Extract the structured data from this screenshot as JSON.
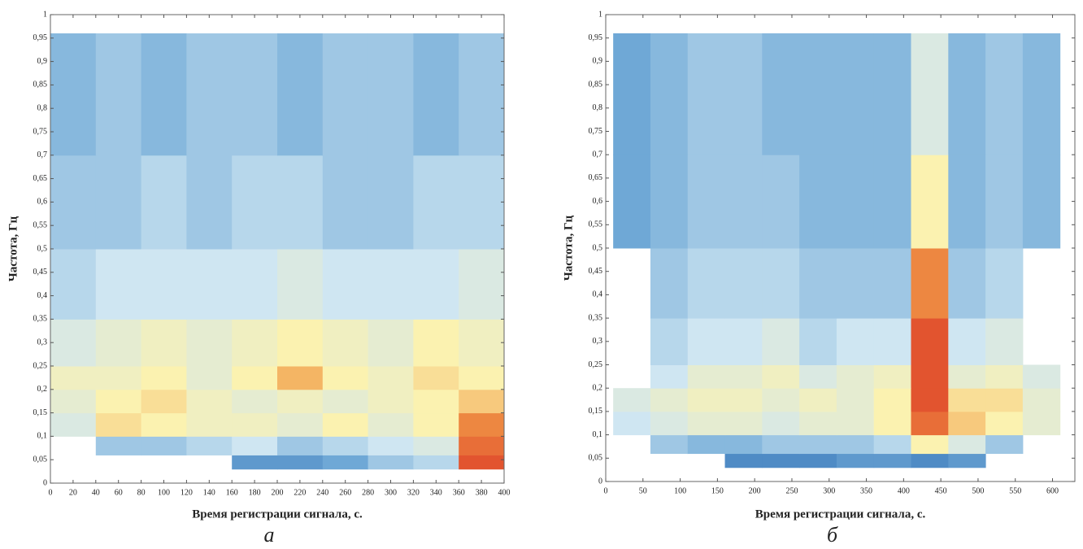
{
  "chart_data": [
    {
      "type": "heatmap",
      "xlabel": "Время регистрации сигнала, с.",
      "ylabel": "Частота, Гц",
      "panel_label": "а",
      "xlim": [
        0,
        400
      ],
      "ylim": [
        0,
        1
      ],
      "xticks": [
        0,
        20,
        40,
        60,
        80,
        100,
        120,
        140,
        160,
        180,
        200,
        220,
        240,
        260,
        280,
        300,
        320,
        340,
        360,
        380,
        400
      ],
      "yticks": [
        0,
        {
          "value": 0.05,
          "label": "0,05"
        },
        {
          "value": 0.1,
          "label": "0,1"
        },
        {
          "value": 0.15,
          "label": "0,15"
        },
        {
          "value": 0.2,
          "label": "0,2"
        },
        {
          "value": 0.25,
          "label": "0,25"
        },
        {
          "value": 0.3,
          "label": "0,3"
        },
        {
          "value": 0.35,
          "label": "0,35"
        },
        {
          "value": 0.4,
          "label": "0,4"
        },
        {
          "value": 0.45,
          "label": "0,45"
        },
        {
          "value": 0.5,
          "label": "0,5"
        },
        {
          "value": 0.55,
          "label": "0,55"
        },
        {
          "value": 0.6,
          "label": "0,6"
        },
        {
          "value": 0.65,
          "label": "0,65"
        },
        {
          "value": 0.7,
          "label": "0,7"
        },
        {
          "value": 0.75,
          "label": "0,75"
        },
        {
          "value": 0.8,
          "label": "0,8"
        },
        {
          "value": 0.85,
          "label": "0,85"
        },
        {
          "value": 0.9,
          "label": "0,9"
        },
        {
          "value": 0.95,
          "label": "0,95"
        },
        1
      ],
      "colormap": [
        "#2f6db3",
        "#6fa8d6",
        "#cfe6f2",
        "#fbf2b0",
        "#f2a04a",
        "#dd3b26"
      ],
      "x_edges": [
        0,
        40,
        80,
        120,
        160,
        200,
        240,
        280,
        320,
        360,
        400
      ],
      "y_edges": [
        0.03,
        0.06,
        0.1,
        0.15,
        0.2,
        0.25,
        0.35,
        0.5,
        0.7,
        0.96
      ],
      "z": [
        [
          null,
          null,
          null,
          null,
          0.15,
          0.15,
          0.2,
          0.3,
          0.35,
          0.95
        ],
        [
          null,
          0.3,
          0.3,
          0.35,
          0.4,
          0.3,
          0.35,
          0.4,
          0.45,
          0.9
        ],
        [
          0.45,
          0.65,
          0.6,
          0.55,
          0.55,
          0.5,
          0.6,
          0.5,
          0.6,
          0.85
        ],
        [
          0.5,
          0.6,
          0.65,
          0.55,
          0.5,
          0.55,
          0.5,
          0.55,
          0.6,
          0.7
        ],
        [
          0.55,
          0.55,
          0.6,
          0.5,
          0.6,
          0.75,
          0.6,
          0.55,
          0.65,
          0.6
        ],
        [
          0.45,
          0.5,
          0.55,
          0.5,
          0.55,
          0.6,
          0.55,
          0.5,
          0.6,
          0.55
        ],
        [
          0.35,
          0.4,
          0.4,
          0.4,
          0.4,
          0.45,
          0.4,
          0.4,
          0.4,
          0.45
        ],
        [
          0.3,
          0.3,
          0.35,
          0.3,
          0.35,
          0.35,
          0.3,
          0.3,
          0.35,
          0.35
        ],
        [
          0.25,
          0.3,
          0.25,
          0.3,
          0.3,
          0.25,
          0.3,
          0.3,
          0.25,
          0.3
        ]
      ]
    },
    {
      "type": "heatmap",
      "xlabel": "Время регистрации сигнала, с.",
      "ylabel": "Частота, Гц",
      "panel_label": "б",
      "xlim": [
        0,
        630
      ],
      "ylim": [
        0,
        1
      ],
      "xticks": [
        0,
        50,
        100,
        150,
        200,
        250,
        300,
        350,
        400,
        450,
        500,
        550,
        600
      ],
      "yticks": [
        0,
        {
          "value": 0.05,
          "label": "0,05"
        },
        {
          "value": 0.1,
          "label": "0,1"
        },
        {
          "value": 0.15,
          "label": "0,15"
        },
        {
          "value": 0.2,
          "label": "0,2"
        },
        {
          "value": 0.25,
          "label": "0,25"
        },
        {
          "value": 0.3,
          "label": "0,3"
        },
        {
          "value": 0.35,
          "label": "0,35"
        },
        {
          "value": 0.4,
          "label": "0,4"
        },
        {
          "value": 0.45,
          "label": "0,45"
        },
        {
          "value": 0.5,
          "label": "0,5"
        },
        {
          "value": 0.55,
          "label": "0,55"
        },
        {
          "value": 0.6,
          "label": "0,6"
        },
        {
          "value": 0.65,
          "label": "0,65"
        },
        {
          "value": 0.7,
          "label": "0,7"
        },
        {
          "value": 0.75,
          "label": "0,75"
        },
        {
          "value": 0.8,
          "label": "0,8"
        },
        {
          "value": 0.85,
          "label": "0,85"
        },
        {
          "value": 0.9,
          "label": "0,9"
        },
        {
          "value": 0.95,
          "label": "0,95"
        },
        1
      ],
      "colormap": [
        "#2f6db3",
        "#6fa8d6",
        "#cfe6f2",
        "#fbf2b0",
        "#f2a04a",
        "#dd3b26"
      ],
      "x_edges": [
        10,
        60,
        110,
        160,
        210,
        260,
        310,
        360,
        410,
        460,
        510,
        560,
        610
      ],
      "y_edges": [
        0.03,
        0.06,
        0.1,
        0.15,
        0.2,
        0.25,
        0.35,
        0.5,
        0.7,
        0.96
      ],
      "z": [
        [
          null,
          null,
          null,
          0.1,
          0.1,
          0.1,
          0.15,
          0.15,
          0.1,
          0.15,
          null,
          null
        ],
        [
          null,
          0.3,
          0.25,
          0.25,
          0.3,
          0.3,
          0.3,
          0.35,
          0.6,
          0.45,
          0.3,
          null
        ],
        [
          0.4,
          0.45,
          0.5,
          0.5,
          0.45,
          0.5,
          0.5,
          0.6,
          0.9,
          0.7,
          0.6,
          0.5
        ],
        [
          0.45,
          0.5,
          0.55,
          0.55,
          0.5,
          0.55,
          0.5,
          0.6,
          0.95,
          0.65,
          0.65,
          0.5
        ],
        [
          null,
          0.4,
          0.5,
          0.5,
          0.55,
          0.45,
          0.5,
          0.55,
          0.95,
          0.5,
          0.55,
          0.45
        ],
        [
          null,
          0.35,
          0.4,
          0.4,
          0.45,
          0.35,
          0.4,
          0.4,
          0.95,
          0.4,
          0.45,
          null
        ],
        [
          null,
          0.3,
          0.35,
          0.35,
          0.35,
          0.3,
          0.3,
          0.3,
          0.85,
          0.3,
          0.35,
          null
        ],
        [
          0.2,
          0.25,
          0.3,
          0.3,
          0.3,
          0.25,
          0.25,
          0.25,
          0.6,
          0.25,
          0.3,
          0.25
        ],
        [
          0.2,
          0.25,
          0.3,
          0.3,
          0.25,
          0.25,
          0.25,
          0.25,
          0.45,
          0.25,
          0.3,
          0.25
        ]
      ]
    }
  ]
}
